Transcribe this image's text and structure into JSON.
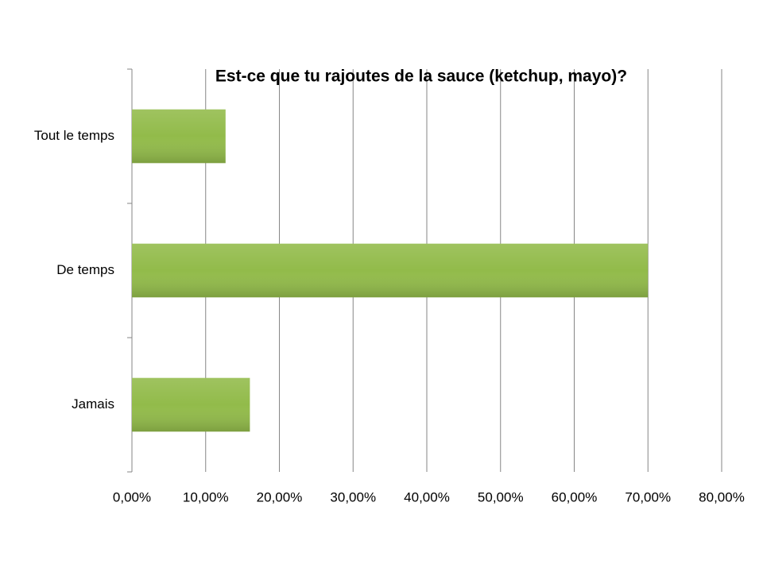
{
  "chart_data": {
    "type": "bar",
    "orientation": "horizontal",
    "title": "Est-ce que tu rajoutes de la sauce (ketchup, mayo)?",
    "categories": [
      "Tout le temps",
      "De temps",
      "Jamais"
    ],
    "values": [
      12.7,
      70,
      16
    ],
    "color": "#92bb4a",
    "xlim": [
      0,
      80
    ],
    "xticks": [
      {
        "value": 0,
        "label": "0,00%"
      },
      {
        "value": 10,
        "label": "10,00%"
      },
      {
        "value": 20,
        "label": "20,00%"
      },
      {
        "value": 30,
        "label": "30,00%"
      },
      {
        "value": 40,
        "label": "40,00%"
      },
      {
        "value": 50,
        "label": "50,00%"
      },
      {
        "value": 60,
        "label": "60,00%"
      },
      {
        "value": 70,
        "label": "70,00%"
      },
      {
        "value": 80,
        "label": "80,00%"
      }
    ],
    "grid": true
  }
}
